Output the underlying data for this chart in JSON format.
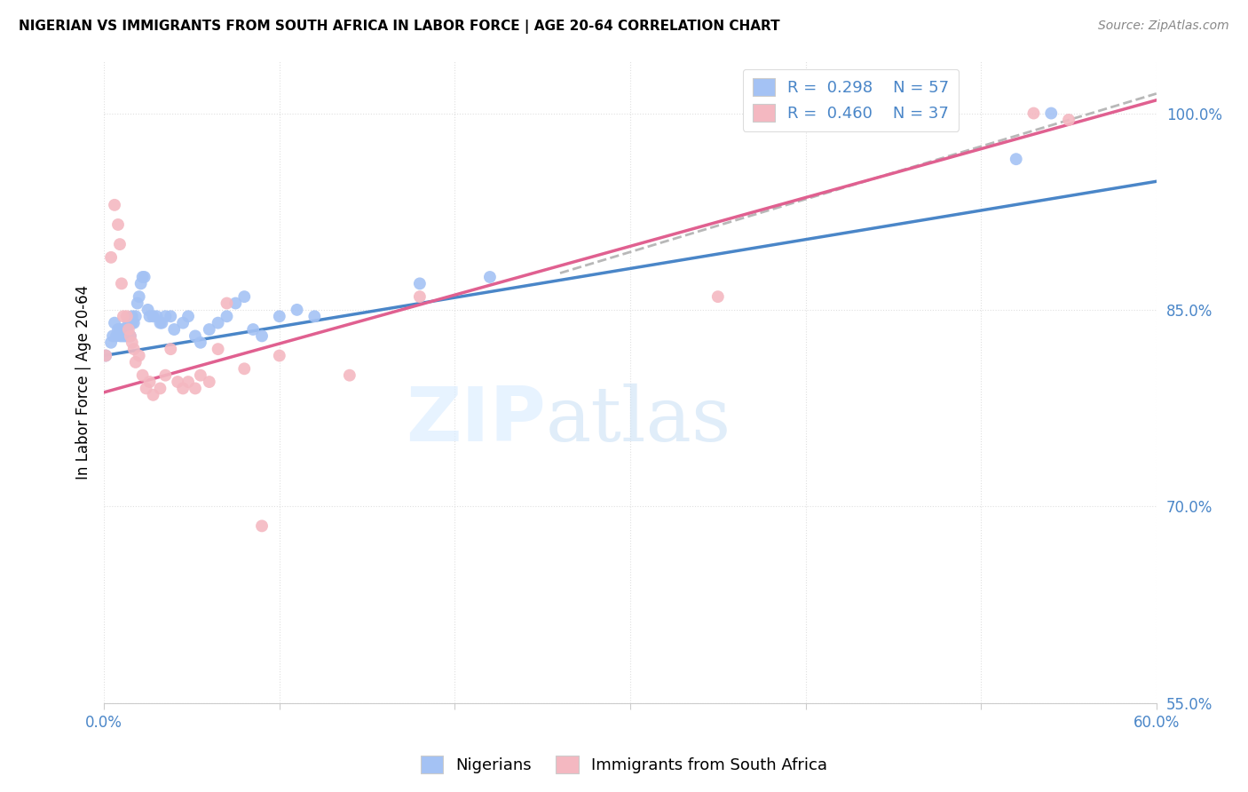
{
  "title": "NIGERIAN VS IMMIGRANTS FROM SOUTH AFRICA IN LABOR FORCE | AGE 20-64 CORRELATION CHART",
  "source": "Source: ZipAtlas.com",
  "ylabel": "In Labor Force | Age 20-64",
  "xlim": [
    0.0,
    0.6
  ],
  "ylim": [
    0.6,
    1.04
  ],
  "xticks": [
    0.0,
    0.1,
    0.2,
    0.3,
    0.4,
    0.5,
    0.6
  ],
  "xtick_labels": [
    "0.0%",
    "",
    "",
    "",
    "",
    "",
    "60.0%"
  ],
  "ytick_labels": [
    "100.0%",
    "85.0%",
    "70.0%",
    "55.0%"
  ],
  "yticks": [
    1.0,
    0.85,
    0.7,
    0.55
  ],
  "watermark_zip": "ZIP",
  "watermark_atlas": "atlas",
  "legend_r1": "0.298",
  "legend_n1": "57",
  "legend_r2": "0.460",
  "legend_n2": "37",
  "color_blue": "#a4c2f4",
  "color_pink": "#f4b8c1",
  "color_blue_line": "#4a86c8",
  "color_pink_line": "#e06090",
  "color_dashed": "#b8b8b8",
  "nigerians_x": [
    0.001,
    0.004,
    0.005,
    0.006,
    0.007,
    0.008,
    0.009,
    0.009,
    0.01,
    0.01,
    0.011,
    0.011,
    0.012,
    0.012,
    0.013,
    0.013,
    0.013,
    0.014,
    0.014,
    0.015,
    0.015,
    0.016,
    0.016,
    0.017,
    0.018,
    0.019,
    0.02,
    0.021,
    0.022,
    0.023,
    0.025,
    0.026,
    0.028,
    0.03,
    0.032,
    0.033,
    0.035,
    0.038,
    0.04,
    0.045,
    0.048,
    0.052,
    0.055,
    0.06,
    0.065,
    0.07,
    0.075,
    0.08,
    0.085,
    0.09,
    0.1,
    0.11,
    0.12,
    0.18,
    0.22,
    0.52,
    0.54
  ],
  "nigerians_y": [
    0.815,
    0.825,
    0.83,
    0.84,
    0.83,
    0.835,
    0.835,
    0.83,
    0.835,
    0.83,
    0.835,
    0.83,
    0.835,
    0.83,
    0.835,
    0.835,
    0.83,
    0.84,
    0.83,
    0.84,
    0.83,
    0.845,
    0.84,
    0.84,
    0.845,
    0.855,
    0.86,
    0.87,
    0.875,
    0.875,
    0.85,
    0.845,
    0.845,
    0.845,
    0.84,
    0.84,
    0.845,
    0.845,
    0.835,
    0.84,
    0.845,
    0.83,
    0.825,
    0.835,
    0.84,
    0.845,
    0.855,
    0.86,
    0.835,
    0.83,
    0.845,
    0.85,
    0.845,
    0.87,
    0.875,
    0.965,
    1.0
  ],
  "sa_x": [
    0.001,
    0.004,
    0.006,
    0.008,
    0.009,
    0.01,
    0.011,
    0.013,
    0.014,
    0.015,
    0.016,
    0.017,
    0.018,
    0.02,
    0.022,
    0.024,
    0.026,
    0.028,
    0.032,
    0.035,
    0.038,
    0.042,
    0.045,
    0.048,
    0.052,
    0.055,
    0.06,
    0.065,
    0.07,
    0.08,
    0.09,
    0.1,
    0.14,
    0.18,
    0.35,
    0.53,
    0.55
  ],
  "sa_y": [
    0.815,
    0.89,
    0.93,
    0.915,
    0.9,
    0.87,
    0.845,
    0.845,
    0.835,
    0.83,
    0.825,
    0.82,
    0.81,
    0.815,
    0.8,
    0.79,
    0.795,
    0.785,
    0.79,
    0.8,
    0.82,
    0.795,
    0.79,
    0.795,
    0.79,
    0.8,
    0.795,
    0.82,
    0.855,
    0.805,
    0.685,
    0.815,
    0.8,
    0.86,
    0.86,
    1.0,
    0.995
  ],
  "blue_line_x": [
    0.0,
    0.6
  ],
  "blue_line_y": [
    0.815,
    0.948
  ],
  "pink_line_x": [
    0.0,
    0.6
  ],
  "pink_line_y": [
    0.787,
    1.01
  ],
  "dash_line_x": [
    0.26,
    0.6
  ],
  "dash_line_y": [
    0.878,
    1.015
  ]
}
